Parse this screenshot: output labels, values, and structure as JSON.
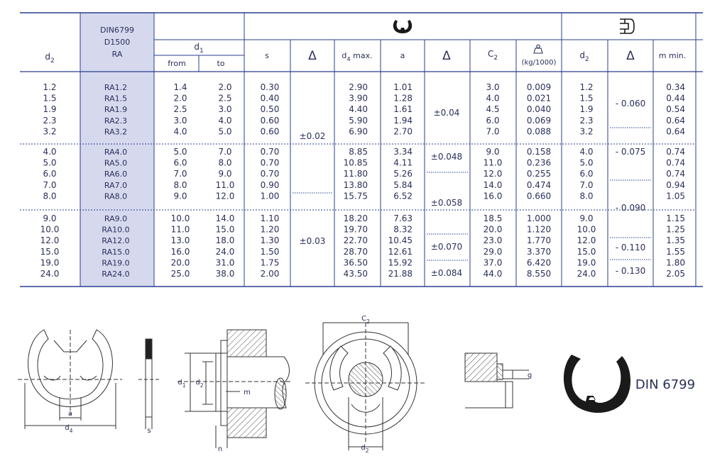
{
  "header": {
    "d2": "d",
    "d2_sub": "2",
    "din_lines": [
      "DIN6799",
      "D1500",
      "RA"
    ],
    "d1": "d",
    "d1_sub": "1",
    "from": "from",
    "to": "to",
    "s": "s",
    "delta": "Δ",
    "d4max": "d",
    "d4max_sub": "4",
    "d4max_suffix": " max.",
    "a": "a",
    "c2": "C",
    "c2_sub": "2",
    "weight": "(kg/1000)",
    "mmin": "m  min."
  },
  "groups": [
    {
      "rows": [
        {
          "d2": "1.2",
          "code": "RA1.2",
          "d1_from": "1.4",
          "d1_to": "2.0",
          "s": "0.30",
          "d4": "2.90",
          "a": "1.01",
          "c2": "3.0",
          "kg": "0.009",
          "d2b": "1.2",
          "m": "0.34"
        },
        {
          "d2": "1.5",
          "code": "RA1.5",
          "d1_from": "2.0",
          "d1_to": "2.5",
          "s": "0.40",
          "d4": "3.90",
          "a": "1.28",
          "c2": "4.0",
          "kg": "0.021",
          "d2b": "1.5",
          "m": "0.44"
        },
        {
          "d2": "1.9",
          "code": "RA1.9",
          "d1_from": "2.5",
          "d1_to": "3.0",
          "s": "0.50",
          "d4": "4.40",
          "a": "1.61",
          "c2": "4.5",
          "kg": "0.040",
          "d2b": "1.9",
          "m": "0.54"
        },
        {
          "d2": "2.3",
          "code": "RA2.3",
          "d1_from": "3.0",
          "d1_to": "4.0",
          "s": "0.60",
          "d4": "5.90",
          "a": "1.94",
          "c2": "6.0",
          "kg": "0.069",
          "d2b": "2.3",
          "m": "0.64"
        },
        {
          "d2": "3.2",
          "code": "RA3.2",
          "d1_from": "4.0",
          "d1_to": "5.0",
          "s": "0.60",
          "d4": "6.90",
          "a": "2.70",
          "c2": "7.0",
          "kg": "0.088",
          "d2b": "3.2",
          "m": "0.64"
        }
      ]
    },
    {
      "rows": [
        {
          "d2": "4.0",
          "code": "RA4.0",
          "d1_from": "5.0",
          "d1_to": "7.0",
          "s": "0.70",
          "d4": "8.85",
          "a": "3.34",
          "c2": "9.0",
          "kg": "0.158",
          "d2b": "4.0",
          "m": "0.74"
        },
        {
          "d2": "5.0",
          "code": "RA5.0",
          "d1_from": "6.0",
          "d1_to": "8.0",
          "s": "0.70",
          "d4": "10.85",
          "a": "4.11",
          "c2": "11.0",
          "kg": "0.236",
          "d2b": "5.0",
          "m": "0.74"
        },
        {
          "d2": "6.0",
          "code": "RA6.0",
          "d1_from": "7.0",
          "d1_to": "9.0",
          "s": "0.70",
          "d4": "11.80",
          "a": "5.26",
          "c2": "12.0",
          "kg": "0.255",
          "d2b": "6.0",
          "m": "0.74"
        },
        {
          "d2": "7.0",
          "code": "RA7.0",
          "d1_from": "8.0",
          "d1_to": "11.0",
          "s": "0.90",
          "d4": "13.80",
          "a": "5.84",
          "c2": "14.0",
          "kg": "0.474",
          "d2b": "7.0",
          "m": "0.94"
        },
        {
          "d2": "8.0",
          "code": "RA8.0",
          "d1_from": "9.0",
          "d1_to": "12.0",
          "s": "1.00",
          "d4": "15.75",
          "a": "6.52",
          "c2": "16.0",
          "kg": "0.660",
          "d2b": "8.0",
          "m": "1.05"
        }
      ]
    },
    {
      "rows": [
        {
          "d2": "9.0",
          "code": "RA9.0",
          "d1_from": "10.0",
          "d1_to": "14.0",
          "s": "1.10",
          "d4": "18.20",
          "a": "7.63",
          "c2": "18.5",
          "kg": "1.000",
          "d2b": "9.0",
          "m": "1.15"
        },
        {
          "d2": "10.0",
          "code": "RA10.0",
          "d1_from": "11.0",
          "d1_to": "15.0",
          "s": "1.20",
          "d4": "19.70",
          "a": "8.32",
          "c2": "20.0",
          "kg": "1.120",
          "d2b": "10.0",
          "m": "1.25"
        },
        {
          "d2": "12.0",
          "code": "RA12.0",
          "d1_from": "13.0",
          "d1_to": "18.0",
          "s": "1.30",
          "d4": "22.70",
          "a": "10.45",
          "c2": "23.0",
          "kg": "1.770",
          "d2b": "12.0",
          "m": "1.35"
        },
        {
          "d2": "15.0",
          "code": "RA15.0",
          "d1_from": "16.0",
          "d1_to": "24.0",
          "s": "1.50",
          "d4": "28.70",
          "a": "12.61",
          "c2": "29.0",
          "kg": "3.370",
          "d2b": "15.0",
          "m": "1.55"
        },
        {
          "d2": "19.0",
          "code": "RA19.0",
          "d1_from": "20.0",
          "d1_to": "31.0",
          "s": "1.75",
          "d4": "36.50",
          "a": "15.92",
          "c2": "37.0",
          "kg": "6.420",
          "d2b": "19.0",
          "m": "1.80"
        },
        {
          "d2": "24.0",
          "code": "RA24.0",
          "d1_from": "25.0",
          "d1_to": "38.0",
          "s": "2.00",
          "d4": "43.50",
          "a": "21.88",
          "c2": "44.0",
          "kg": "8.550",
          "d2b": "24.0",
          "m": "2.05"
        }
      ]
    }
  ],
  "tolerances": {
    "s_tol": [
      "±0.02",
      "±0.03"
    ],
    "a_tol": [
      "±0.04",
      "±0.048",
      "±0.058",
      "±0.070",
      "±0.084"
    ],
    "d2_tol": [
      "- 0.060",
      "- 0.075",
      "- 0.090",
      "- 0.110",
      "- 0.130"
    ]
  },
  "drawing_labels": {
    "a": "a",
    "d4": "d",
    "d4_sub": "4",
    "s": "s",
    "d1": "d",
    "d1_sub": "1",
    "d2": "d",
    "d2_sub": "2",
    "m": "m",
    "n": "n",
    "c2": "C",
    "c2_sub": "2",
    "g": "g",
    "din_label": "DIN 6799"
  },
  "colors": {
    "text": "#2a2f5a",
    "rule": "#2a3f8f",
    "din_column_bg": "#d6d9ee",
    "drawing_line": "#333333"
  },
  "icons": [
    "e-clip-icon",
    "groove-icon",
    "weight-icon",
    "delta-symbol"
  ]
}
